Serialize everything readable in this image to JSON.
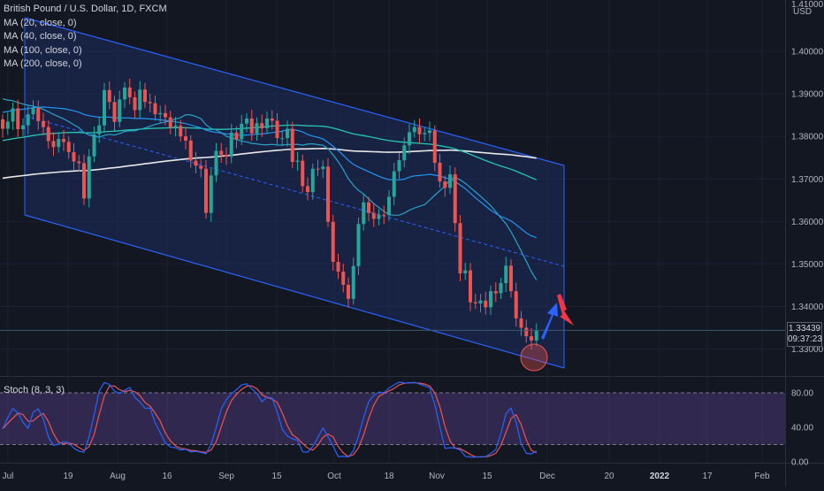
{
  "legend": {
    "title": "British Pound / U.S. Dollar, 1D, FXCM",
    "ma": [
      {
        "label": "MA (20, close, 0)",
        "color": "#29a3c6"
      },
      {
        "label": "MA (40, close, 0)",
        "color": "#2196f3"
      },
      {
        "label": "MA (100, close, 0)",
        "color": "#26c6b0"
      },
      {
        "label": "MA (200, close, 0)",
        "color": "#ffffff"
      }
    ]
  },
  "price_axis": {
    "unit": "USD",
    "top_value": "1.41000",
    "ticks": [
      "1.40000",
      "1.39000",
      "1.38000",
      "1.37000",
      "1.36000",
      "1.35000",
      "1.34000",
      "1.33000"
    ],
    "current_price": "1.33439",
    "countdown": "09:37:23"
  },
  "stoch": {
    "label": "Stoch (8, 3, 3)",
    "ticks": [
      "80.00",
      "40.00",
      "0.00"
    ],
    "upper": 80,
    "lower": 20
  },
  "time_axis": [
    "Jul",
    "19",
    "Aug",
    "16",
    "Sep",
    "15",
    "Oct",
    "18",
    "Nov",
    "15",
    "Dec",
    "20",
    "2022",
    "17",
    "Feb"
  ],
  "colors": {
    "background": "#131722",
    "up": "#26a69a",
    "down": "#ef5350",
    "channel": "#2962ff",
    "stoch_k": "#2962ff",
    "stoch_d": "#ef5350",
    "stoch_band": "#7e57c2"
  },
  "chart_data": [
    {
      "type": "candlestick",
      "title": "British Pound / U.S. Dollar, 1D, FXCM",
      "ylim": [
        1.322,
        1.412
      ],
      "x_labels": [
        "Jul",
        "19",
        "Aug",
        "16",
        "Sep",
        "15",
        "Oct",
        "18",
        "Nov",
        "15",
        "Dec",
        "20",
        "2022",
        "17",
        "Feb"
      ],
      "closes": [
        1.3818,
        1.3835,
        1.3866,
        1.3817,
        1.3826,
        1.3852,
        1.3867,
        1.3836,
        1.3822,
        1.3789,
        1.3775,
        1.3794,
        1.3787,
        1.3763,
        1.3741,
        1.3737,
        1.3654,
        1.3753,
        1.3805,
        1.3826,
        1.3909,
        1.3881,
        1.3834,
        1.3887,
        1.3915,
        1.3892,
        1.3862,
        1.391,
        1.3881,
        1.3878,
        1.3852,
        1.3855,
        1.3845,
        1.3821,
        1.3825,
        1.38,
        1.379,
        1.3743,
        1.3731,
        1.3724,
        1.362,
        1.3708,
        1.3766,
        1.3757,
        1.3752,
        1.3809,
        1.3793,
        1.383,
        1.3842,
        1.3807,
        1.3831,
        1.3819,
        1.3842,
        1.3837,
        1.3796,
        1.3796,
        1.3818,
        1.374,
        1.3743,
        1.3683,
        1.3669,
        1.3724,
        1.3723,
        1.3729,
        1.3599,
        1.3505,
        1.3482,
        1.3451,
        1.3418,
        1.3495,
        1.3594,
        1.3645,
        1.362,
        1.3606,
        1.3616,
        1.3615,
        1.3658,
        1.3718,
        1.3744,
        1.3779,
        1.381,
        1.3822,
        1.3805,
        1.3808,
        1.3814,
        1.3738,
        1.3694,
        1.3679,
        1.3711,
        1.3596,
        1.3478,
        1.3485,
        1.341,
        1.3407,
        1.3414,
        1.3398,
        1.3436,
        1.3431,
        1.3455,
        1.3496,
        1.3436,
        1.3372,
        1.335,
        1.333,
        1.332,
        1.3344
      ],
      "stochastic": {
        "k_period": 8,
        "smooth": 3,
        "d_period": 3,
        "levels": [
          80,
          20
        ]
      }
    }
  ]
}
